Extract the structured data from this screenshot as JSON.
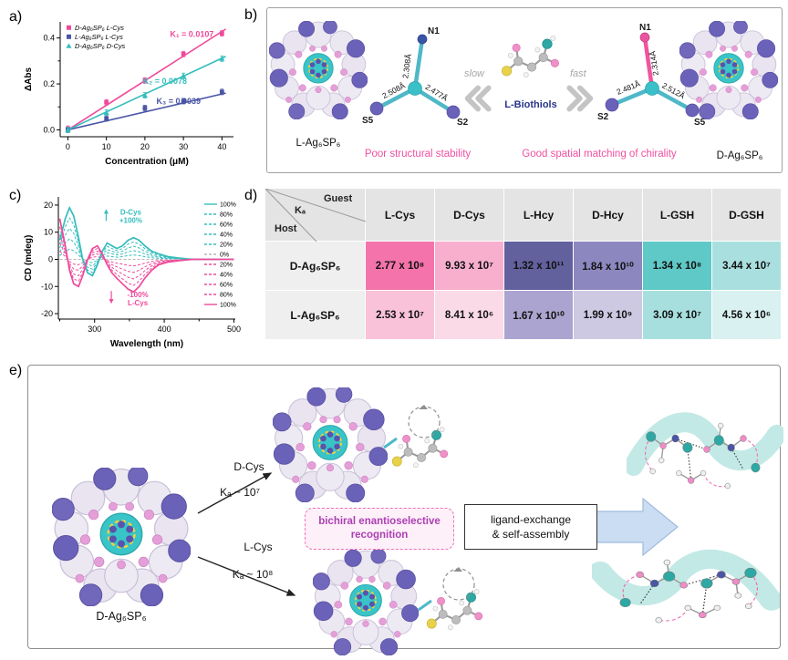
{
  "panels": {
    "a_label": "a)",
    "b_label": "b)",
    "c_label": "c)",
    "d_label": "d)",
    "e_label": "e)"
  },
  "chart_data": [
    {
      "type": "scatter",
      "panel": "a",
      "xlabel": "Concentration (μM)",
      "ylabel": "ΔAbs",
      "xlim": [
        -2,
        43
      ],
      "ylim": [
        -0.03,
        0.47
      ],
      "xticks": [
        0,
        10,
        20,
        30,
        40
      ],
      "yticks": [
        0.0,
        0.2,
        0.4
      ],
      "yticks_minor": [
        0.1,
        0.3
      ],
      "x": [
        0,
        10,
        20,
        30,
        40
      ],
      "error_bar": 0.012,
      "series": [
        {
          "name": "D-Ag₆SP₆ L-Cys",
          "color": "#EF4A9B",
          "marker": "square",
          "slope": 0.0107,
          "values": [
            0.005,
            0.12,
            0.215,
            0.33,
            0.42
          ],
          "k_label": "K₁ = 0.0107",
          "k_pos": [
            26.5,
            0.405
          ]
        },
        {
          "name": "L-Ag₆SP₆ L-Cys",
          "color": "#4A55A5",
          "marker": "square",
          "slope": 0.0039,
          "values": [
            0.0,
            0.05,
            0.095,
            0.125,
            0.165
          ],
          "k_label": "K₃ = 0.0039",
          "k_pos": [
            23,
            0.112
          ]
        },
        {
          "name": "D-Ag₆SP₆ D-Cys",
          "color": "#35BDBD",
          "marker": "triangle",
          "slope": 0.0078,
          "values": [
            0.0,
            0.075,
            0.15,
            0.235,
            0.31
          ],
          "k_label": "K₂ = 0.0078",
          "k_pos": [
            19.5,
            0.2
          ]
        }
      ]
    },
    {
      "type": "line",
      "panel": "c",
      "xlabel": "Wavelength (nm)",
      "ylabel": "CD (mdeg)",
      "xlim": [
        248,
        502
      ],
      "ylim": [
        -22,
        23
      ],
      "xticks": [
        300,
        400,
        500
      ],
      "xticks_minor": [
        250,
        350,
        450
      ],
      "yticks": [
        -20,
        -10,
        0,
        10,
        20
      ],
      "x": [
        250,
        258,
        264,
        270,
        277,
        283,
        290,
        297,
        304,
        311,
        318,
        325,
        332,
        340,
        348,
        356,
        364,
        372,
        382,
        392,
        405,
        420,
        440,
        470,
        500
      ],
      "teal_100": [
        7,
        15,
        19,
        16,
        8,
        0,
        -5,
        -6,
        -2,
        3,
        6,
        5,
        4,
        5,
        7,
        8,
        7,
        5,
        3,
        2,
        1,
        0.5,
        0,
        0,
        0
      ],
      "pink_100": [
        15,
        5,
        -4,
        -9,
        -10,
        -6,
        0,
        4,
        5,
        2,
        -2,
        -5,
        -7,
        -9,
        -11,
        -12,
        -10,
        -7,
        -4,
        -2,
        -1,
        -0.5,
        0,
        0,
        0
      ],
      "teal_scales": [
        1,
        0.8,
        0.6,
        0.4,
        0.2
      ],
      "pink_scales": [
        0.2,
        0.4,
        0.6,
        0.8,
        1
      ],
      "teal_color": "#35BDBD",
      "pink_color": "#EF4A9B",
      "zero_color": "#B9B9B9",
      "legend": [
        {
          "label": "100%",
          "color": "#35BDBD",
          "dash": false
        },
        {
          "label": "80%",
          "color": "#35BDBD",
          "dash": true
        },
        {
          "label": "60%",
          "color": "#35BDBD",
          "dash": true
        },
        {
          "label": "40%",
          "color": "#35BDBD",
          "dash": true
        },
        {
          "label": "20%",
          "color": "#35BDBD",
          "dash": true
        },
        {
          "label": "0%",
          "color": "#B9B9B9",
          "dash": true
        },
        {
          "label": "20%",
          "color": "#EF4A9B",
          "dash": true
        },
        {
          "label": "40%",
          "color": "#EF4A9B",
          "dash": true
        },
        {
          "label": "60%",
          "color": "#EF4A9B",
          "dash": true
        },
        {
          "label": "80%",
          "color": "#EF4A9B",
          "dash": true
        },
        {
          "label": "100%",
          "color": "#EF4A9B",
          "dash": false
        }
      ],
      "annotations": [
        {
          "lines": [
            "D-Cys",
            "+100%"
          ],
          "color": "#35BDBD",
          "x": 352,
          "y": 16.5,
          "arrow": "up"
        },
        {
          "lines": [
            "-100%",
            "L-Cys"
          ],
          "color": "#EF4A9B",
          "x": 362,
          "y": -14,
          "arrow": "down"
        }
      ]
    }
  ],
  "panel_b": {
    "left_cluster_label": "L-Ag₆SP₆",
    "right_cluster_label": "D-Ag₆SP₆",
    "left_caption": "Poor structural stability",
    "right_caption": "Good spatial matching of chirality",
    "center_molecule_label": "L-Biothiols",
    "slow_label": "slow",
    "fast_label": "fast",
    "left_tripod": {
      "n": "N1",
      "s_left": "S5",
      "s_right": "S2",
      "bond_n": "2.308Å",
      "bond_left": "2.508Å",
      "bond_right": "2.477Å"
    },
    "right_tripod": {
      "n": "N1",
      "s_left": "S2",
      "s_right": "S5",
      "bond_n": "2.314Å",
      "bond_left": "2.481Å",
      "bond_right": "2.512Å"
    }
  },
  "panel_d": {
    "corner": {
      "ka": "Kₐ",
      "guest": "Guest",
      "host": "Host"
    },
    "columns": [
      "L-Cys",
      "D-Cys",
      "L-Hcy",
      "D-Hcy",
      "L-GSH",
      "D-GSH"
    ],
    "rows": [
      {
        "host": "D-Ag₆SP₆",
        "values": [
          "2.77 x 10⁸",
          "9.93 x 10⁷",
          "1.32 x 10¹¹",
          "1.84 x 10¹⁰",
          "1.34 x 10⁸",
          "3.44 x 10⁷"
        ],
        "colors": [
          "#F473AB",
          "#F8AFCD",
          "#62619E",
          "#8D87BF",
          "#5FC9C7",
          "#A9E0DF"
        ]
      },
      {
        "host": "L-Ag₆SP₆",
        "values": [
          "2.53 x 10⁷",
          "8.41 x 10⁶",
          "1.67 x 10¹⁰",
          "1.99 x 10⁹",
          "3.09 x 10⁷",
          "4.56 x 10⁶"
        ],
        "colors": [
          "#F9C2D9",
          "#FBDAE8",
          "#ABA4D0",
          "#CDC9E3",
          "#A7DFDE",
          "#D9F1F0"
        ]
      }
    ]
  },
  "panel_e": {
    "left_cluster_label": "D-Ag₆SP₆",
    "top_path": {
      "ligand": "D-Cys",
      "ka": "Kₐ ~ 10⁷"
    },
    "bottom_path": {
      "ligand": "L-Cys",
      "ka": "Kₐ ~ 10⁸"
    },
    "recognition_line1": "bichiral enantioselective",
    "recognition_line2": "recognition",
    "process_line1": "ligand-exchange",
    "process_line2": "& self-assembly"
  }
}
